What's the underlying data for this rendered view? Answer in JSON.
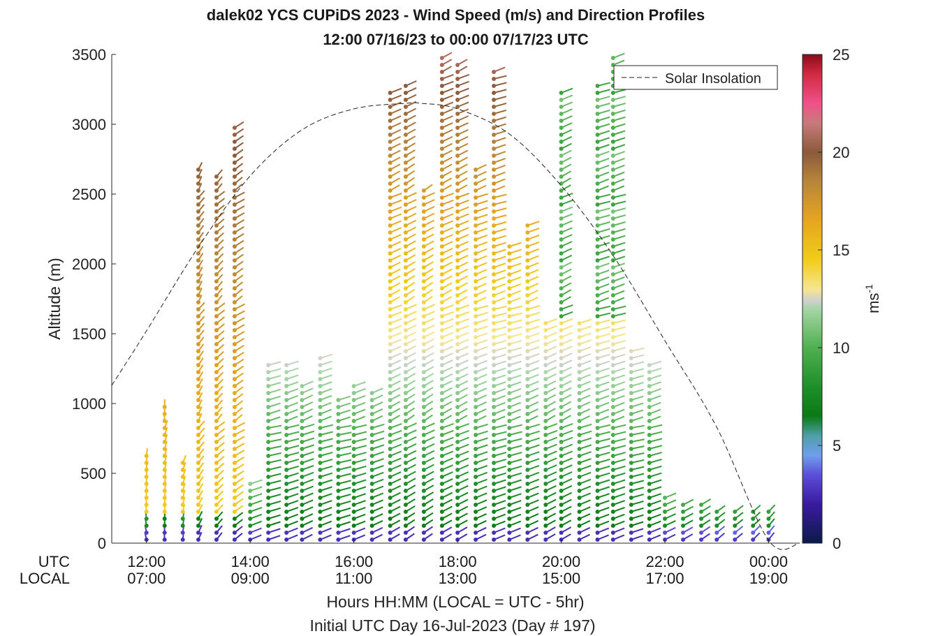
{
  "chart_data": {
    "type": "scatter",
    "title": "dalek02 YCS CUPiDS 2023 - Wind Speed (m/s) and Direction Profiles",
    "subtitle": "12:00 07/16/23 to 00:00 07/17/23  UTC",
    "xlabel": "Hours HH:MM  (LOCAL = UTC - 5hr)",
    "xlabel2": "Initial UTC Day 16-Jul-2023 (Day # 197)",
    "ylabel": "Altitude (m)",
    "ylim": [
      0,
      3500
    ],
    "xlim_hours_utc": [
      11.33,
      24.6
    ],
    "yticks": [
      "0",
      "500",
      "1000",
      "1500",
      "2000",
      "2500",
      "3000",
      "3500"
    ],
    "xtick_row_labels": {
      "utc": "UTC",
      "local": "LOCAL"
    },
    "xticks": [
      {
        "hour": 12,
        "utc": "12:00",
        "local": "07:00"
      },
      {
        "hour": 14,
        "utc": "14:00",
        "local": "09:00"
      },
      {
        "hour": 16,
        "utc": "16:00",
        "local": "11:00"
      },
      {
        "hour": 18,
        "utc": "18:00",
        "local": "13:00"
      },
      {
        "hour": 20,
        "utc": "20:00",
        "local": "15:00"
      },
      {
        "hour": 22,
        "utc": "22:00",
        "local": "17:00"
      },
      {
        "hour": 24,
        "utc": "00:00",
        "local": "19:00"
      }
    ],
    "legend": {
      "label": "Solar Insolation",
      "placement": "top-right",
      "style": "dashed"
    },
    "grid": false,
    "colorbar": {
      "label": "ms",
      "label_exponent": "-1",
      "range": [
        0,
        25
      ],
      "ticks": [
        "0",
        "5",
        "10",
        "15",
        "20",
        "25"
      ],
      "colormap": [
        [
          0,
          "#0b1a4a"
        ],
        [
          2,
          "#3a1aa0"
        ],
        [
          3.5,
          "#5b4fd9"
        ],
        [
          4.5,
          "#6f9fec"
        ],
        [
          5.5,
          "#4f9ea8"
        ],
        [
          6.5,
          "#0b7a14"
        ],
        [
          8,
          "#1f8f2a"
        ],
        [
          10,
          "#4fb04f"
        ],
        [
          12,
          "#a6d6a6"
        ],
        [
          12.4,
          "#cfcfcf"
        ],
        [
          13,
          "#f5e690"
        ],
        [
          14.5,
          "#f1cc1a"
        ],
        [
          16.5,
          "#e6a520"
        ],
        [
          18.5,
          "#b8853a"
        ],
        [
          20,
          "#8b5a3b"
        ],
        [
          21.5,
          "#c97a7a"
        ],
        [
          22.5,
          "#f0508a"
        ],
        [
          24,
          "#d02a42"
        ],
        [
          25,
          "#8b0a1a"
        ]
      ]
    },
    "solar_insolation_curve": {
      "hour": [
        11.33,
        12,
        13,
        14,
        15,
        16,
        17,
        17.3,
        18,
        19,
        20,
        21,
        22,
        23,
        24,
        24.6
      ],
      "altitude_equiv": [
        1130,
        1520,
        2120,
        2630,
        2960,
        3110,
        3150,
        3150,
        3110,
        2930,
        2560,
        2060,
        1450,
        830,
        20,
        0
      ]
    },
    "profiles": [
      {
        "hour": 12.0,
        "top": 630,
        "base_dir": 180
      },
      {
        "hour": 12.35,
        "top": 1010,
        "base_dir": 185
      },
      {
        "hour": 12.7,
        "top": 580,
        "base_dir": 190
      },
      {
        "hour": 13.0,
        "top": 2700,
        "base_dir": 200
      },
      {
        "hour": 13.35,
        "top": 2650,
        "base_dir": 210
      },
      {
        "hour": 13.7,
        "top": 3000,
        "base_dir": 220
      },
      {
        "hour": 14.0,
        "top": 430,
        "base_dir": 240
      },
      {
        "hour": 14.35,
        "top": 1280,
        "base_dir": 245
      },
      {
        "hour": 14.7,
        "top": 1280,
        "base_dir": 240
      },
      {
        "hour": 15.0,
        "top": 1160,
        "base_dir": 235
      },
      {
        "hour": 15.35,
        "top": 1360,
        "base_dir": 240
      },
      {
        "hour": 15.7,
        "top": 1060,
        "base_dir": 245
      },
      {
        "hour": 16.0,
        "top": 1130,
        "base_dir": 240
      },
      {
        "hour": 16.35,
        "top": 1100,
        "base_dir": 235
      },
      {
        "hour": 16.7,
        "top": 3240,
        "base_dir": 230
      },
      {
        "hour": 17.0,
        "top": 3290,
        "base_dir": 225
      },
      {
        "hour": 17.35,
        "top": 2560,
        "base_dir": 225
      },
      {
        "hour": 17.7,
        "top": 3490,
        "base_dir": 230
      },
      {
        "hour": 18.0,
        "top": 3470,
        "base_dir": 230
      },
      {
        "hour": 18.35,
        "top": 2700,
        "base_dir": 235
      },
      {
        "hour": 18.7,
        "top": 3380,
        "base_dir": 240
      },
      {
        "hour": 19.0,
        "top": 2130,
        "base_dir": 240
      },
      {
        "hour": 19.35,
        "top": 2320,
        "base_dir": 235
      },
      {
        "hour": 19.7,
        "top": 1590,
        "base_dir": 230
      },
      {
        "hour": 20.0,
        "top": 3230,
        "base_dir": 230
      },
      {
        "hour": 20.35,
        "top": 1600,
        "base_dir": 235
      },
      {
        "hour": 20.7,
        "top": 3300,
        "base_dir": 240
      },
      {
        "hour": 21.0,
        "top": 3480,
        "base_dir": 240
      },
      {
        "hour": 21.35,
        "top": 1420,
        "base_dir": 245
      },
      {
        "hour": 21.7,
        "top": 1280,
        "base_dir": 240
      },
      {
        "hour": 22.0,
        "top": 340,
        "base_dir": 235
      },
      {
        "hour": 22.35,
        "top": 290,
        "base_dir": 230
      },
      {
        "hour": 22.7,
        "top": 290,
        "base_dir": 225
      },
      {
        "hour": 23.0,
        "top": 250,
        "base_dir": 220
      },
      {
        "hour": 23.35,
        "top": 240,
        "base_dir": 220
      },
      {
        "hour": 23.7,
        "top": 240,
        "base_dir": 215
      },
      {
        "hour": 24.0,
        "top": 240,
        "base_dir": 210
      }
    ]
  }
}
